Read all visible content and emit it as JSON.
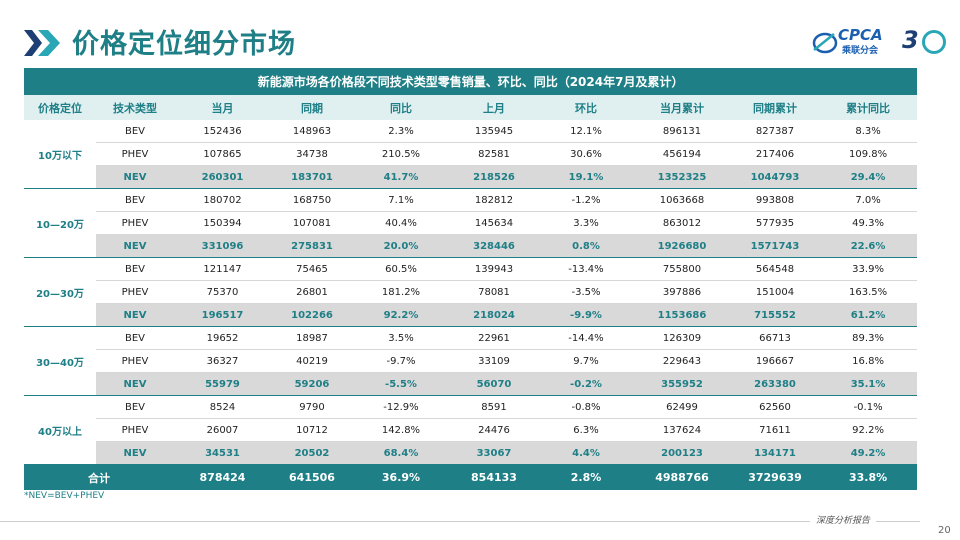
{
  "page": {
    "title": "价格定位细分市场",
    "logo_brand": "CPCA",
    "logo_sub": "乘联分会",
    "anniversary": "3",
    "footnote": "*NEV=BEV+PHEV",
    "footer_text": "深度分析报告",
    "page_number": "20"
  },
  "table": {
    "caption": "新能源市场各价格段不同技术类型零售销量、环比、同比（2024年7月及累计）",
    "columns": [
      "价格定位",
      "技术类型",
      "当月",
      "同期",
      "同比",
      "上月",
      "环比",
      "当月累计",
      "同期累计",
      "累计同比"
    ],
    "groups": [
      {
        "label": "10万以下",
        "rows": [
          {
            "type": "BEV",
            "cells": [
              "152436",
              "148963",
              "2.3%",
              "135945",
              "12.1%",
              "896131",
              "827387",
              "8.3%"
            ]
          },
          {
            "type": "PHEV",
            "cells": [
              "107865",
              "34738",
              "210.5%",
              "82581",
              "30.6%",
              "456194",
              "217406",
              "109.8%"
            ]
          },
          {
            "type": "NEV",
            "cells": [
              "260301",
              "183701",
              "41.7%",
              "218526",
              "19.1%",
              "1352325",
              "1044793",
              "29.4%"
            ]
          }
        ]
      },
      {
        "label": "10—20万",
        "rows": [
          {
            "type": "BEV",
            "cells": [
              "180702",
              "168750",
              "7.1%",
              "182812",
              "-1.2%",
              "1063668",
              "993808",
              "7.0%"
            ]
          },
          {
            "type": "PHEV",
            "cells": [
              "150394",
              "107081",
              "40.4%",
              "145634",
              "3.3%",
              "863012",
              "577935",
              "49.3%"
            ]
          },
          {
            "type": "NEV",
            "cells": [
              "331096",
              "275831",
              "20.0%",
              "328446",
              "0.8%",
              "1926680",
              "1571743",
              "22.6%"
            ]
          }
        ]
      },
      {
        "label": "20—30万",
        "rows": [
          {
            "type": "BEV",
            "cells": [
              "121147",
              "75465",
              "60.5%",
              "139943",
              "-13.4%",
              "755800",
              "564548",
              "33.9%"
            ]
          },
          {
            "type": "PHEV",
            "cells": [
              "75370",
              "26801",
              "181.2%",
              "78081",
              "-3.5%",
              "397886",
              "151004",
              "163.5%"
            ]
          },
          {
            "type": "NEV",
            "cells": [
              "196517",
              "102266",
              "92.2%",
              "218024",
              "-9.9%",
              "1153686",
              "715552",
              "61.2%"
            ]
          }
        ]
      },
      {
        "label": "30—40万",
        "rows": [
          {
            "type": "BEV",
            "cells": [
              "19652",
              "18987",
              "3.5%",
              "22961",
              "-14.4%",
              "126309",
              "66713",
              "89.3%"
            ]
          },
          {
            "type": "PHEV",
            "cells": [
              "36327",
              "40219",
              "-9.7%",
              "33109",
              "9.7%",
              "229643",
              "196667",
              "16.8%"
            ]
          },
          {
            "type": "NEV",
            "cells": [
              "55979",
              "59206",
              "-5.5%",
              "56070",
              "-0.2%",
              "355952",
              "263380",
              "35.1%"
            ]
          }
        ]
      },
      {
        "label": "40万以上",
        "rows": [
          {
            "type": "BEV",
            "cells": [
              "8524",
              "9790",
              "-12.9%",
              "8591",
              "-0.8%",
              "62499",
              "62560",
              "-0.1%"
            ]
          },
          {
            "type": "PHEV",
            "cells": [
              "26007",
              "10712",
              "142.8%",
              "24476",
              "6.3%",
              "137624",
              "71611",
              "92.2%"
            ]
          },
          {
            "type": "NEV",
            "cells": [
              "34531",
              "20502",
              "68.4%",
              "33067",
              "4.4%",
              "200123",
              "134171",
              "49.2%"
            ]
          }
        ]
      }
    ],
    "total": {
      "label": "合计",
      "cells": [
        "878424",
        "641506",
        "36.9%",
        "854133",
        "2.8%",
        "4988766",
        "3729639",
        "33.8%"
      ]
    }
  }
}
